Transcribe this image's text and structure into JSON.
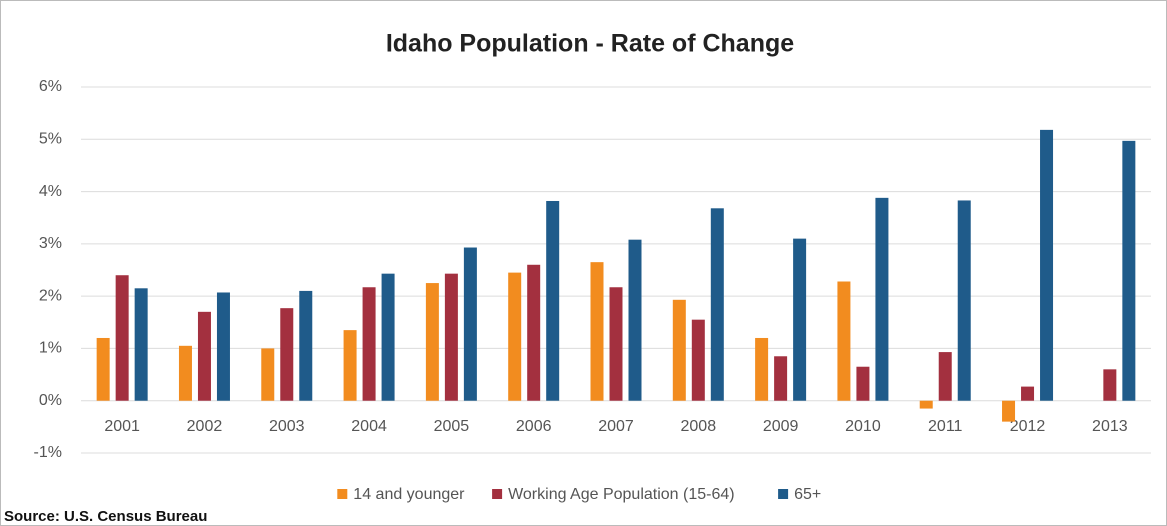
{
  "chart_data": {
    "type": "bar",
    "title": "Idaho Population - Rate of Change",
    "source": "Source: U.S. Census Bureau",
    "categories": [
      "2001",
      "2002",
      "2003",
      "2004",
      "2005",
      "2006",
      "2007",
      "2008",
      "2009",
      "2010",
      "2011",
      "2012",
      "2013"
    ],
    "series": [
      {
        "name": "14 and younger",
        "color": "#f28c1f",
        "values": [
          1.2,
          1.05,
          1.0,
          1.35,
          2.25,
          2.45,
          2.65,
          1.93,
          1.2,
          2.28,
          -0.15,
          -0.4,
          0
        ]
      },
      {
        "name": "Working Age Population (15-64)",
        "color": "#a3303f",
        "values": [
          2.4,
          1.7,
          1.77,
          2.17,
          2.43,
          2.6,
          2.17,
          1.55,
          0.85,
          0.65,
          0.93,
          0.27,
          0.6
        ]
      },
      {
        "name": "65+",
        "color": "#1f5b8a",
        "values": [
          2.15,
          2.07,
          2.1,
          2.43,
          2.93,
          3.82,
          3.08,
          3.68,
          3.1,
          3.88,
          3.83,
          5.18,
          4.97
        ]
      }
    ],
    "ylim": [
      -1,
      6
    ],
    "yticks": [
      {
        "value": -1,
        "label": "-1%"
      },
      {
        "value": 0,
        "label": "0%"
      },
      {
        "value": 1,
        "label": "1%"
      },
      {
        "value": 2,
        "label": "2%"
      },
      {
        "value": 3,
        "label": "3%"
      },
      {
        "value": 4,
        "label": "4%"
      },
      {
        "value": 5,
        "label": "5%"
      },
      {
        "value": 6,
        "label": "6%"
      }
    ],
    "grid": true,
    "legend": "bottom"
  }
}
